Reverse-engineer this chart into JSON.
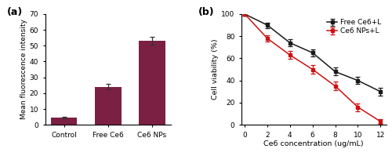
{
  "bar_categories": [
    "Control",
    "Free Ce6",
    "Ce6 NPs"
  ],
  "bar_values": [
    4.5,
    24.0,
    53.0
  ],
  "bar_errors": [
    0.5,
    1.8,
    2.5
  ],
  "bar_color": "#7b2042",
  "bar_ylim": [
    0,
    70
  ],
  "bar_yticks": [
    0,
    10,
    20,
    30,
    40,
    50,
    60,
    70
  ],
  "bar_ylabel": "Mean fluorescence intensity",
  "panel_a_label": "(a)",
  "panel_b_label": "(b)",
  "line_x": [
    0,
    2,
    4,
    6,
    8,
    10,
    12
  ],
  "free_ce6_y": [
    100,
    90,
    74,
    65,
    48,
    40,
    30
  ],
  "free_ce6_err": [
    1.5,
    2.5,
    3.0,
    3.0,
    3.5,
    3.0,
    3.5
  ],
  "ce6_nps_y": [
    100,
    78,
    63,
    50,
    35,
    16,
    3
  ],
  "ce6_nps_err": [
    1.5,
    3.0,
    3.5,
    4.0,
    4.0,
    3.5,
    2.0
  ],
  "line_color_free": "#1a1a1a",
  "line_color_nps": "#cc1111",
  "line_ylim": [
    0,
    100
  ],
  "line_yticks": [
    0,
    20,
    40,
    60,
    80,
    100
  ],
  "line_xlim": [
    0,
    12
  ],
  "line_xticks": [
    0,
    2,
    4,
    6,
    8,
    10,
    12
  ],
  "line_xlabel": "Ce6 concentration (ug/mL)",
  "line_ylabel": "Cell viability (%)",
  "legend_free": "Free Ce6+L",
  "legend_nps": "Ce6 NPs+L",
  "marker_free": "s",
  "marker_nps": "s"
}
